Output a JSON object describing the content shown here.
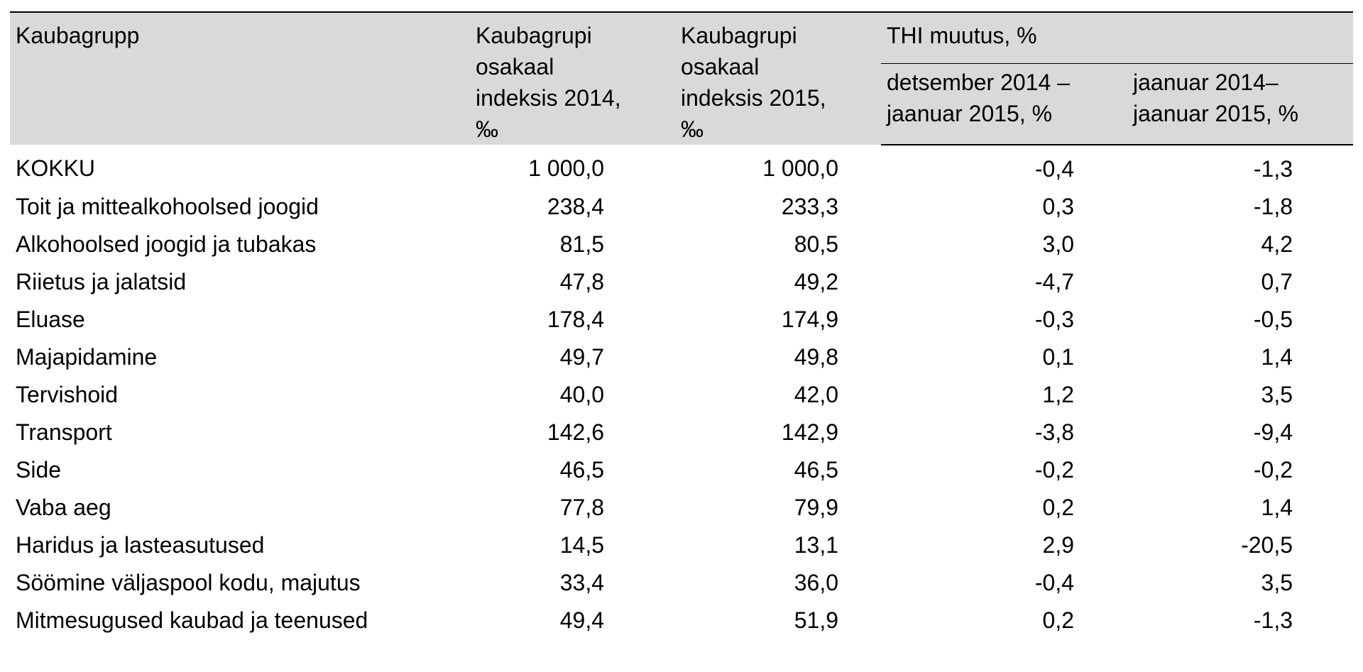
{
  "header": {
    "col_group": "Kaubagrupp",
    "col_share_2014": [
      "Kaubagrupi",
      "osakaal",
      "indeksis 2014,",
      "‰"
    ],
    "col_share_2015": [
      "Kaubagrupi",
      "osakaal",
      "indeksis 2015,",
      "‰"
    ],
    "col_thi_group": "THI muutus, %",
    "col_thi_month": [
      "detsember 2014 –",
      "jaanuar 2015, %"
    ],
    "col_thi_year": [
      "jaanuar 2014–",
      "jaanuar 2015, %"
    ]
  },
  "rows": [
    {
      "name": "KOKKU",
      "share2014": "1 000,0",
      "share2015": "1 000,0",
      "month": "-0,4",
      "year": "-1,3"
    },
    {
      "name": "Toit ja mittealkohoolsed joogid",
      "share2014": "238,4",
      "share2015": "233,3",
      "month": "0,3",
      "year": "-1,8"
    },
    {
      "name": "Alkohoolsed joogid ja tubakas",
      "share2014": "81,5",
      "share2015": "80,5",
      "month": "3,0",
      "year": "4,2"
    },
    {
      "name": "Riietus ja jalatsid",
      "share2014": "47,8",
      "share2015": "49,2",
      "month": "-4,7",
      "year": "0,7"
    },
    {
      "name": "Eluase",
      "share2014": "178,4",
      "share2015": "174,9",
      "month": "-0,3",
      "year": "-0,5"
    },
    {
      "name": "Majapidamine",
      "share2014": "49,7",
      "share2015": "49,8",
      "month": "0,1",
      "year": "1,4"
    },
    {
      "name": "Tervishoid",
      "share2014": "40,0",
      "share2015": "42,0",
      "month": "1,2",
      "year": "3,5"
    },
    {
      "name": "Transport",
      "share2014": "142,6",
      "share2015": "142,9",
      "month": "-3,8",
      "year": "-9,4"
    },
    {
      "name": "Side",
      "share2014": "46,5",
      "share2015": "46,5",
      "month": "-0,2",
      "year": "-0,2"
    },
    {
      "name": "Vaba aeg",
      "share2014": "77,8",
      "share2015": "79,9",
      "month": "0,2",
      "year": "1,4"
    },
    {
      "name": "Haridus ja lasteasutused",
      "share2014": "14,5",
      "share2015": "13,1",
      "month": "2,9",
      "year": "-20,5"
    },
    {
      "name": "Söömine väljaspool kodu, majutus",
      "share2014": "33,4",
      "share2015": "36,0",
      "month": "-0,4",
      "year": "3,5"
    },
    {
      "name": "Mitmesugused kaubad ja teenused",
      "share2014": "49,4",
      "share2015": "51,9",
      "month": "0,2",
      "year": "-1,3"
    }
  ]
}
